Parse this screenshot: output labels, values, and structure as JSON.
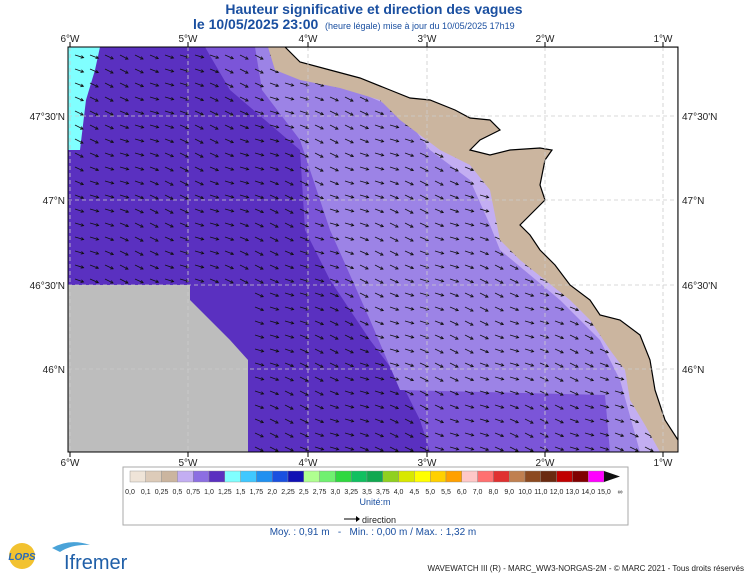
{
  "header": {
    "title": "Hauteur significative et direction des vagues",
    "subtitle_date": "le 10/05/2025 23:00",
    "subtitle_note": "(heure légale) mise à jour du 10/05/2025 17h19"
  },
  "map": {
    "lon_labels": [
      "6°W",
      "5°W",
      "4°W",
      "3°W",
      "2°W",
      "1°W"
    ],
    "lat_labels": [
      "47°30'N",
      "47°N",
      "46°30'N",
      "46°N"
    ]
  },
  "legend": {
    "labels": [
      "0,0",
      "0,1",
      "0,25",
      "0,5",
      "0,75",
      "1,0",
      "1,25",
      "1,5",
      "1,75",
      "2,0",
      "2,25",
      "2,5",
      "2,75",
      "3,0",
      "3,25",
      "3,5",
      "3,75",
      "4,0",
      "4,5",
      "5,0",
      "5,5",
      "6,0",
      "7,0",
      "8,0",
      "9,0",
      "10,0",
      "11,0",
      "12,0",
      "13,0",
      "14,0",
      "15,0",
      "∞"
    ],
    "colors": [
      "#efe4d8",
      "#ddcbb9",
      "#cbb59f",
      "#c3aef2",
      "#8c6ee2",
      "#5a30c0",
      "#80ffff",
      "#40c8ff",
      "#2090f0",
      "#1a50e0",
      "#1010b4",
      "#b0ff90",
      "#70f070",
      "#30d840",
      "#10c060",
      "#10a850",
      "#90d020",
      "#d8e800",
      "#ffff00",
      "#ffd000",
      "#ffa000",
      "#ffc8c8",
      "#ff7070",
      "#e03030",
      "#c08050",
      "#8c4a20",
      "#6a2a10",
      "#c00000",
      "#800000",
      "#ff00ff",
      "#101010"
    ],
    "unit": "Unité:m",
    "direction": "direction",
    "stats": "Moy. : 0,91 m   -   Min. : 0,00 m / Max. : 1,32 m"
  },
  "logos": {
    "lops": "LOPS",
    "ifremer": "Ifremer"
  },
  "footer": "WAVEWATCH III (R) - MARC_WW3-NORGAS-2M - © MARC 2021 - Tous droits réservés"
}
